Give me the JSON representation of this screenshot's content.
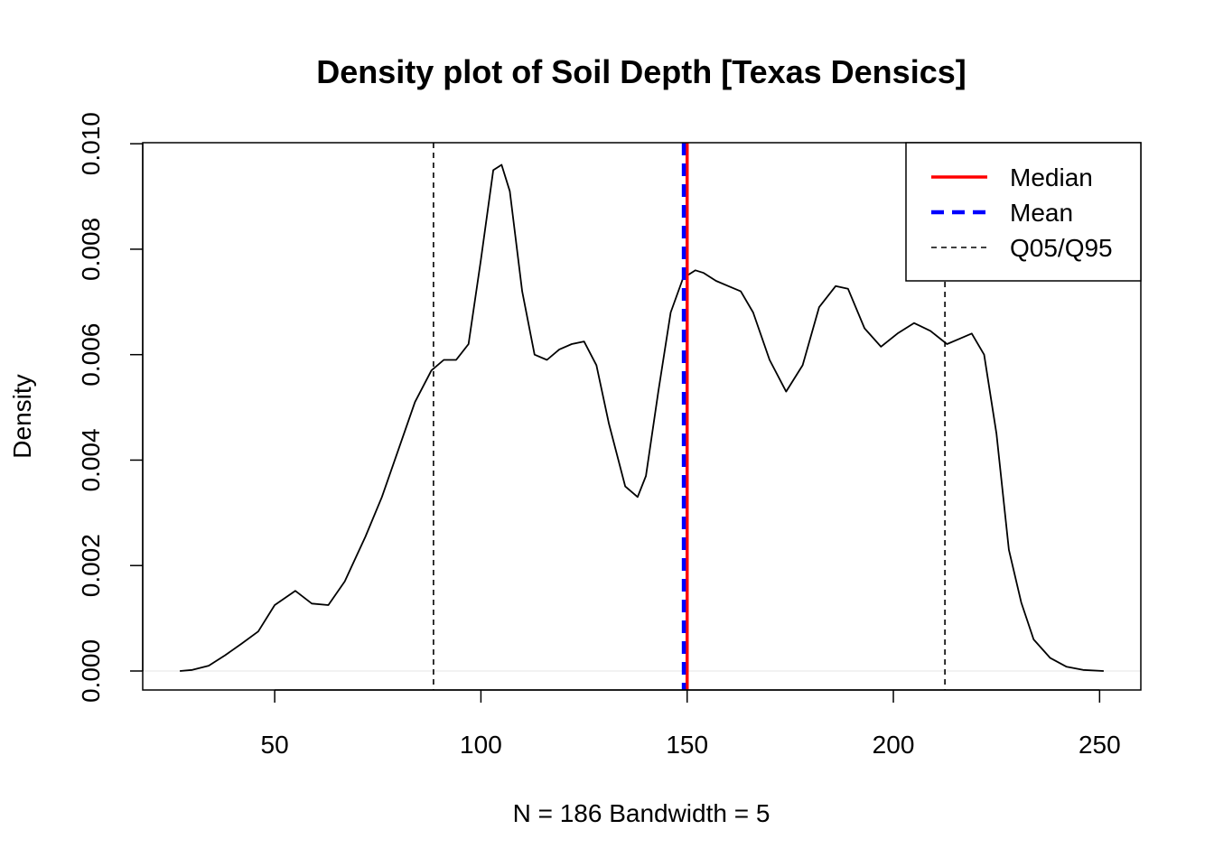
{
  "chart_data": {
    "type": "line",
    "title": "Density plot of Soil Depth [Texas Densics]",
    "xlabel": "N = 186   Bandwidth = 5",
    "ylabel": "Density",
    "xlim": [
      18,
      260
    ],
    "ylim": [
      -0.00036,
      0.01002
    ],
    "x_ticks": [
      50,
      100,
      150,
      200,
      250
    ],
    "y_ticks": [
      0.0,
      0.002,
      0.004,
      0.006,
      0.008,
      0.01
    ],
    "x_tick_labels": [
      "50",
      "100",
      "150",
      "200",
      "250"
    ],
    "y_tick_labels": [
      "0.000",
      "0.002",
      "0.004",
      "0.006",
      "0.008",
      "0.010"
    ],
    "series": [
      {
        "color": "#000000",
        "x": [
          27,
          30,
          34,
          38,
          42,
          46,
          50,
          55,
          59,
          63,
          67,
          72,
          76,
          80,
          84,
          88,
          91,
          94,
          97,
          100,
          103,
          105,
          107,
          110,
          113,
          116,
          119,
          122,
          125,
          128,
          131,
          135,
          138,
          140,
          143,
          146,
          149,
          152,
          154,
          157,
          160,
          163,
          166,
          170,
          174,
          178,
          182,
          186,
          189,
          193,
          197,
          201,
          205,
          209,
          213,
          216,
          219,
          222,
          225,
          228,
          231,
          234,
          238,
          242,
          246,
          251
        ],
        "y": [
          0.0,
          2e-05,
          0.0001,
          0.0003,
          0.00052,
          0.00075,
          0.00125,
          0.00152,
          0.00128,
          0.00125,
          0.0017,
          0.00255,
          0.0033,
          0.0042,
          0.0051,
          0.0057,
          0.0059,
          0.0059,
          0.0062,
          0.0078,
          0.0095,
          0.0096,
          0.0091,
          0.0072,
          0.006,
          0.0059,
          0.0061,
          0.0062,
          0.00625,
          0.0058,
          0.0047,
          0.0035,
          0.0033,
          0.0037,
          0.0053,
          0.0068,
          0.00745,
          0.0076,
          0.00755,
          0.0074,
          0.0073,
          0.0072,
          0.0068,
          0.0059,
          0.0053,
          0.0058,
          0.0069,
          0.0073,
          0.00725,
          0.0065,
          0.00615,
          0.0064,
          0.0066,
          0.00645,
          0.0062,
          0.0063,
          0.0064,
          0.006,
          0.0045,
          0.0023,
          0.0013,
          0.0006,
          0.00025,
          8e-05,
          2e-05,
          0.0
        ]
      }
    ],
    "reference_lines": [
      {
        "name": "Median",
        "x": 150,
        "color": "#ff0000",
        "style": "solid"
      },
      {
        "name": "Mean",
        "x": 149.2,
        "color": "#0000ff",
        "style": "dashed"
      },
      {
        "name": "Q05/Q95",
        "x": 88.5,
        "color": "#000000",
        "style": "dotted"
      },
      {
        "name": "Q05/Q95",
        "x": 212.5,
        "color": "#000000",
        "style": "dotted"
      }
    ],
    "legend": {
      "position": "top-right",
      "entries": [
        {
          "label": "Median",
          "color": "#ff0000",
          "style": "solid"
        },
        {
          "label": "Mean",
          "color": "#0000ff",
          "style": "dashed"
        },
        {
          "label": "Q05/Q95",
          "color": "#000000",
          "style": "dotted"
        }
      ]
    },
    "grid": false
  }
}
